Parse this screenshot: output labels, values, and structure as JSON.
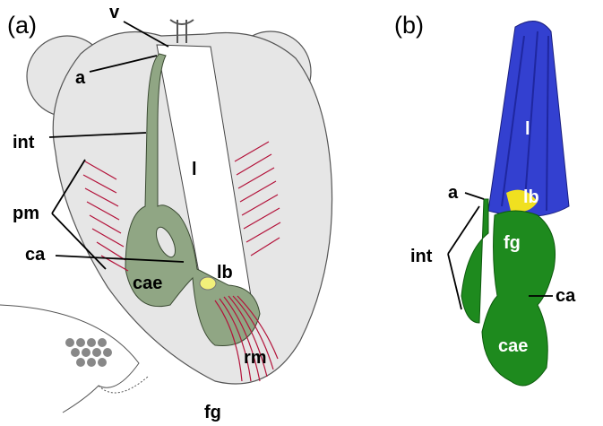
{
  "panels": [
    {
      "label": "(a)",
      "labels": [
        "v",
        "a",
        "int",
        "l",
        "pm",
        "ca",
        "cae",
        "lb",
        "rm",
        "fg"
      ]
    },
    {
      "label": "(b)",
      "labels": [
        "l",
        "lb",
        "a",
        "fg",
        "int",
        "ca",
        "cae"
      ]
    }
  ]
}
